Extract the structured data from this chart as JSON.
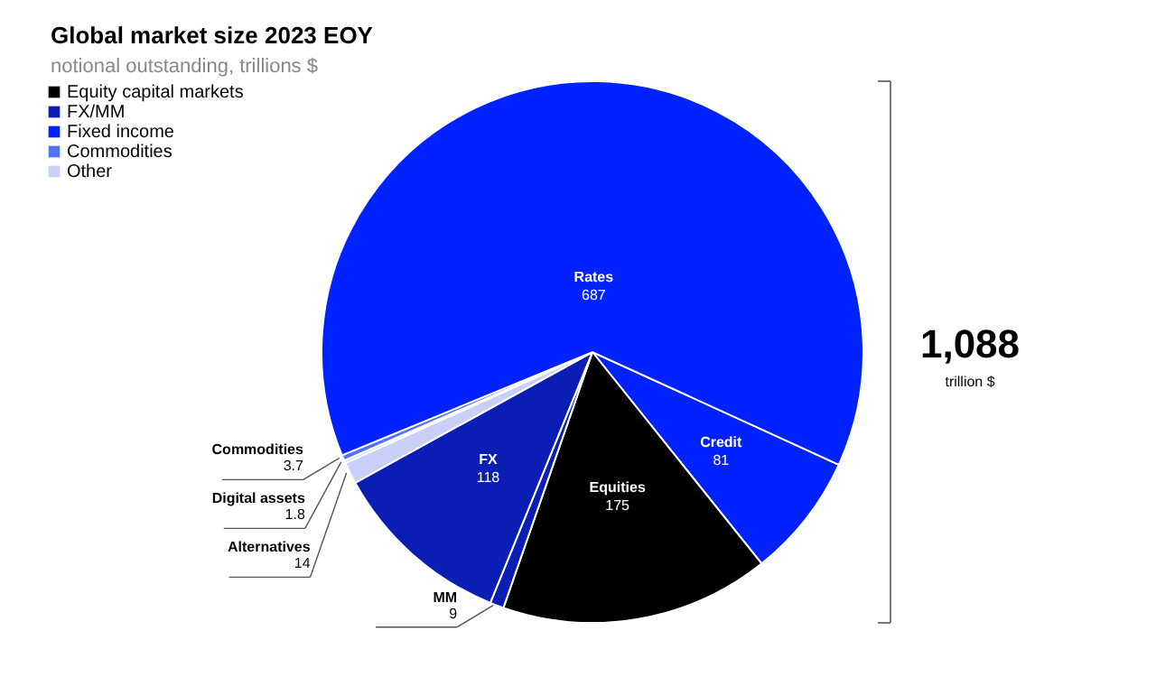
{
  "chart_data": [
    {
      "type": "pie",
      "title": "Global market size 2023 EOY",
      "subtitle": "notional outstanding, trillions $",
      "categories": [
        "Credit",
        "Equities",
        "MM",
        "FX",
        "Alternatives",
        "Digital assets",
        "Commodities",
        "Rates"
      ],
      "values": [
        81,
        175,
        9,
        118,
        14,
        1.8,
        3.7,
        687
      ],
      "colors": [
        "#0022ff",
        "#000000",
        "#0b1eb4",
        "#0b1eb4",
        "#c8cff8",
        "#c8cff8",
        "#5470ff",
        "#0022ff"
      ],
      "data_labels": true,
      "annotations": [
        "1,088",
        "trillion $"
      ]
    },
    {
      "type": "other",
      "categories": [
        "Equity capital markets",
        "FX/MM",
        "Fixed income",
        "Commodities",
        "Other"
      ],
      "colors": [
        "#000000",
        "#0b1eb4",
        "#0022ff",
        "#5470ff",
        "#c8cff8"
      ]
    }
  ]
}
